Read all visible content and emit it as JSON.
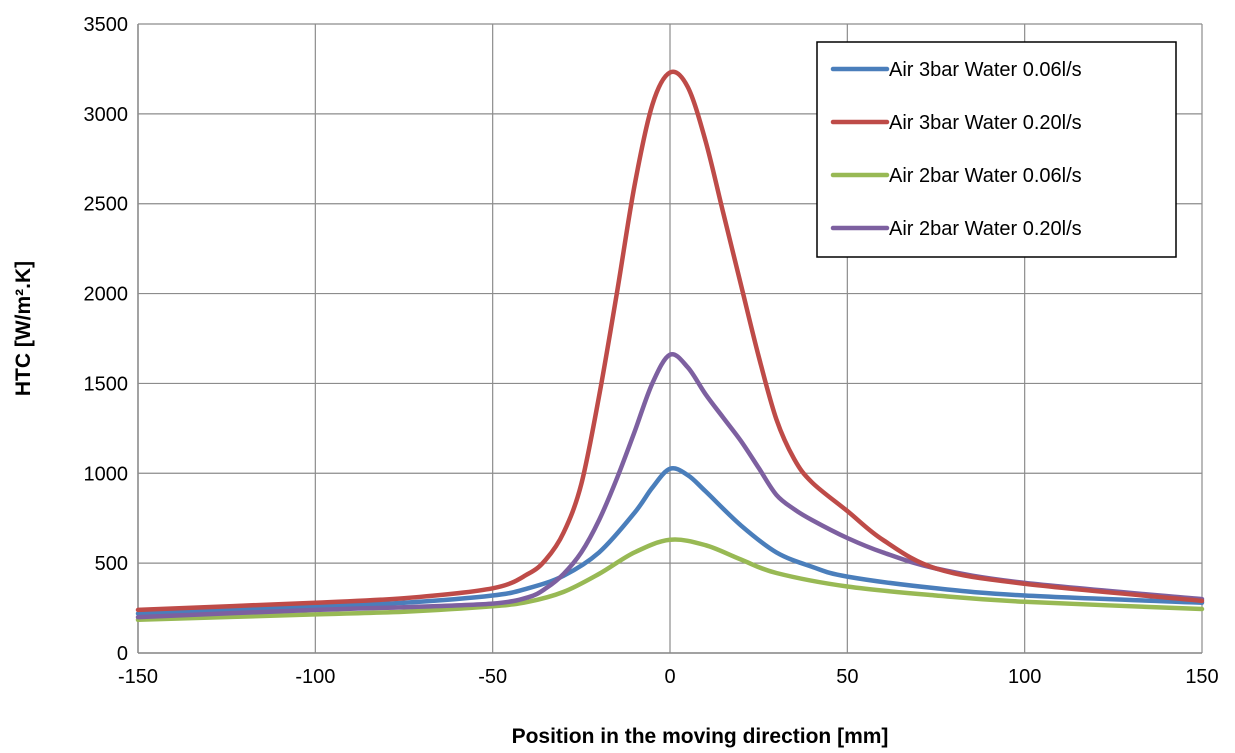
{
  "chart_data": {
    "type": "line",
    "title": "",
    "xlabel": "Position in the moving direction [mm]",
    "ylabel": "HTC [W/m².K]",
    "xlim": [
      -150,
      150
    ],
    "ylim": [
      0,
      3500
    ],
    "xticks": [
      -150,
      -100,
      -50,
      0,
      50,
      100,
      150
    ],
    "yticks": [
      0,
      500,
      1000,
      1500,
      2000,
      2500,
      3000,
      3500
    ],
    "grid": true,
    "legend_position": "top-right",
    "series": [
      {
        "name": "Air 3bar Water 0.06l/s",
        "color": "#4a7ebb",
        "x": [
          -150,
          -100,
          -75,
          -50,
          -40,
          -30,
          -20,
          -10,
          -5,
          0,
          5,
          10,
          20,
          30,
          40,
          50,
          75,
          100,
          150
        ],
        "y": [
          220,
          260,
          280,
          320,
          360,
          430,
          560,
          780,
          920,
          1025,
          990,
          900,
          710,
          560,
          480,
          425,
          360,
          320,
          280
        ]
      },
      {
        "name": "Air 3bar Water 0.20l/s",
        "color": "#be4b48",
        "x": [
          -150,
          -100,
          -75,
          -50,
          -40,
          -35,
          -30,
          -25,
          -20,
          -15,
          -10,
          -5,
          0,
          5,
          10,
          15,
          20,
          25,
          30,
          35,
          40,
          50,
          60,
          75,
          100,
          150
        ],
        "y": [
          240,
          280,
          305,
          360,
          440,
          520,
          670,
          940,
          1430,
          2000,
          2600,
          3050,
          3230,
          3150,
          2850,
          2450,
          2050,
          1650,
          1300,
          1080,
          950,
          790,
          630,
          470,
          385,
          290
        ]
      },
      {
        "name": "Air 2bar Water 0.06l/s",
        "color": "#98b954",
        "x": [
          -150,
          -100,
          -75,
          -50,
          -40,
          -30,
          -20,
          -10,
          0,
          10,
          20,
          30,
          50,
          75,
          100,
          150
        ],
        "y": [
          185,
          215,
          230,
          260,
          285,
          340,
          440,
          560,
          630,
          600,
          520,
          445,
          370,
          320,
          285,
          245
        ]
      },
      {
        "name": "Air 2bar Water 0.20l/s",
        "color": "#7d60a0",
        "x": [
          -150,
          -100,
          -75,
          -50,
          -40,
          -35,
          -30,
          -25,
          -20,
          -15,
          -10,
          -5,
          0,
          5,
          10,
          15,
          20,
          25,
          30,
          35,
          40,
          50,
          60,
          75,
          100,
          150
        ],
        "y": [
          200,
          240,
          255,
          275,
          310,
          360,
          440,
          560,
          740,
          970,
          1230,
          1500,
          1660,
          1590,
          1440,
          1310,
          1180,
          1030,
          880,
          800,
          740,
          640,
          560,
          470,
          390,
          300
        ]
      }
    ]
  }
}
